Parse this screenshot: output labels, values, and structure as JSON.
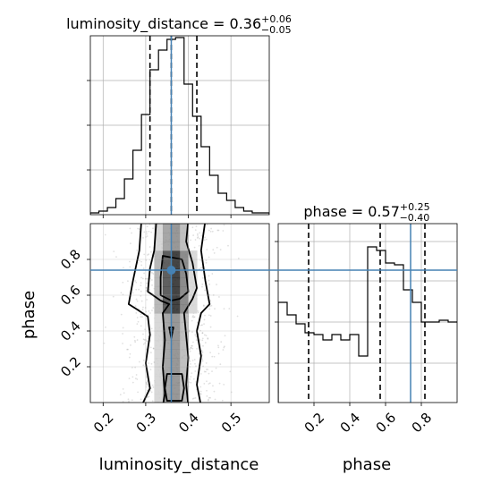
{
  "chart_data": [
    {
      "type": "histogram",
      "title_main": "luminosity_distance = 0.36",
      "title_sup": "+0.06",
      "title_sub": "−0.05",
      "xlim": [
        0.17,
        0.59
      ],
      "ylim": [
        0,
        1
      ],
      "xticks": [
        0.2,
        0.3,
        0.4,
        0.5
      ],
      "grid": true,
      "bin_edges": [
        0.17,
        0.19,
        0.21,
        0.23,
        0.25,
        0.27,
        0.29,
        0.31,
        0.33,
        0.35,
        0.37,
        0.39,
        0.41,
        0.43,
        0.45,
        0.47,
        0.49,
        0.51,
        0.53,
        0.55,
        0.57,
        0.59
      ],
      "counts": [
        0.01,
        0.02,
        0.04,
        0.09,
        0.2,
        0.36,
        0.56,
        0.81,
        0.92,
        0.98,
        0.99,
        0.73,
        0.55,
        0.38,
        0.22,
        0.12,
        0.08,
        0.04,
        0.02,
        0.01,
        0.01
      ],
      "quantile_lines": [
        0.31,
        0.36,
        0.42
      ],
      "truth": 0.36
    },
    {
      "type": "histogram",
      "title_main": "phase = 0.57",
      "title_sup": "+0.25",
      "title_sub": "−0.40",
      "xlim": [
        0.0,
        1.0
      ],
      "ylim": [
        0,
        1
      ],
      "xticks": [
        0.2,
        0.4,
        0.6,
        0.8
      ],
      "xlabel": "phase",
      "grid": true,
      "bin_edges": [
        0.0,
        0.05,
        0.1,
        0.15,
        0.2,
        0.25,
        0.3,
        0.35,
        0.4,
        0.45,
        0.5,
        0.55,
        0.6,
        0.65,
        0.7,
        0.75,
        0.8,
        0.85,
        0.9,
        0.95,
        1.0
      ],
      "counts": [
        0.56,
        0.49,
        0.44,
        0.39,
        0.38,
        0.35,
        0.38,
        0.35,
        0.38,
        0.26,
        0.87,
        0.85,
        0.78,
        0.77,
        0.63,
        0.56,
        0.45,
        0.45,
        0.46,
        0.45
      ],
      "quantile_lines": [
        0.17,
        0.57,
        0.82
      ],
      "truth": 0.74
    },
    {
      "type": "heatmap",
      "subtype": "2d-posterior-contour",
      "xlabel": "luminosity_distance",
      "ylabel": "phase",
      "xlim": [
        0.17,
        0.59
      ],
      "ylim": [
        0.0,
        1.0
      ],
      "xticks": [
        0.2,
        0.3,
        0.4,
        0.5
      ],
      "yticks": [
        0.2,
        0.4,
        0.6,
        0.8
      ],
      "grid": true,
      "truth": [
        0.36,
        0.74
      ]
    }
  ],
  "colors": {
    "truth": "#4682b4",
    "hist": "#000000",
    "grid": "#b0b0b0"
  }
}
